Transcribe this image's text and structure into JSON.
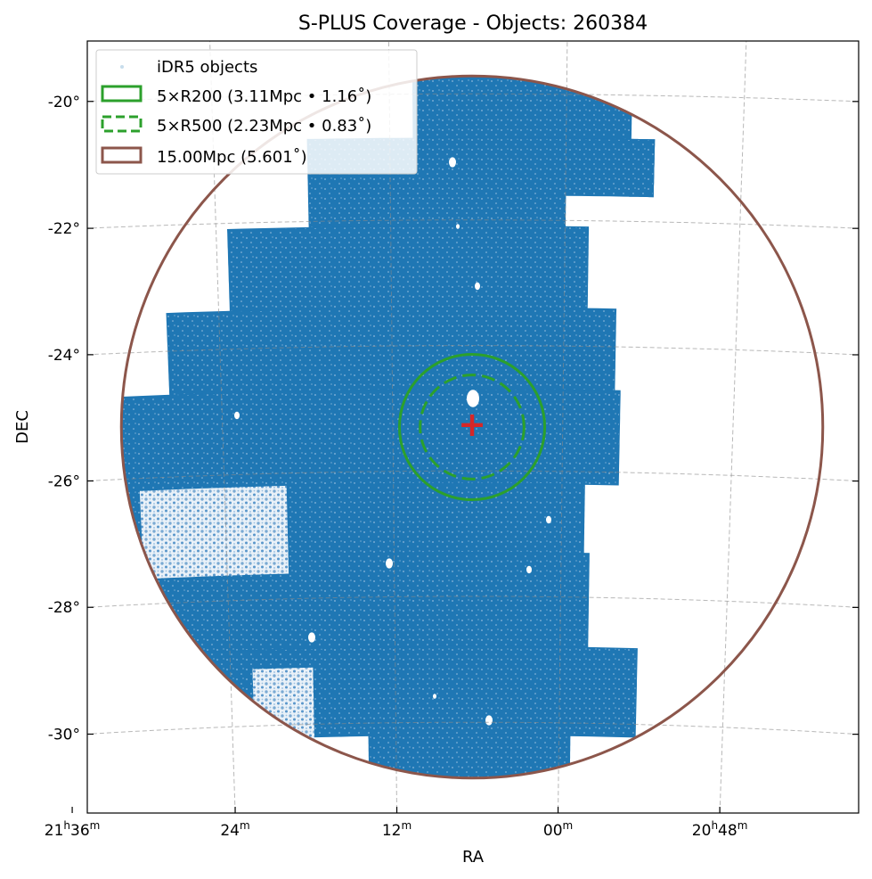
{
  "chart_data": {
    "type": "scatter",
    "title": "S-PLUS Coverage - Objects: 260384",
    "xlabel": "RA",
    "ylabel": "DEC",
    "projection": "sky (tangent plane), RA increasing to the left",
    "center": {
      "ra_deg": 316.6,
      "dec_deg": -25.3
    },
    "xlim_ra_deg": [
      324.2,
      308.8
    ],
    "ylim_dec_deg": [
      -31.4,
      -19.2
    ],
    "x_ticks": [
      {
        "label": "21h36m",
        "ra_deg": 324.0
      },
      {
        "label": "24m",
        "ra_deg": 321.0
      },
      {
        "label": "12m",
        "ra_deg": 318.0
      },
      {
        "label": "00m",
        "ra_deg": 315.0
      },
      {
        "label": "20h48m",
        "ra_deg": 312.0
      }
    ],
    "y_ticks": [
      {
        "label": "-20°",
        "dec_deg": -20
      },
      {
        "label": "-22°",
        "dec_deg": -22
      },
      {
        "label": "-24°",
        "dec_deg": -24
      },
      {
        "label": "-26°",
        "dec_deg": -26
      },
      {
        "label": "-28°",
        "dec_deg": -28
      },
      {
        "label": "-30°",
        "dec_deg": -30
      }
    ],
    "grid": true,
    "legend_position": "top-left",
    "series": [
      {
        "name": "iDR5 objects",
        "kind": "points",
        "color": "#1f77b4",
        "count": 260384,
        "coverage_regions_deg": [
          {
            "ra": [
              317.6,
              313.9
            ],
            "dec": [
              -20.7,
              -19.7
            ]
          },
          {
            "ra": [
              313.9,
              313.5
            ],
            "dec": [
              -20.7,
              -21.6
            ]
          },
          {
            "ra": [
              319.4,
              313.5
            ],
            "dec": [
              -21.6,
              -20.7
            ]
          },
          {
            "ra": [
              319.4,
              315.0
            ],
            "dec": [
              -22.1,
              -21.6
            ]
          },
          {
            "ra": [
              320.8,
              314.6
            ],
            "dec": [
              -23.4,
              -22.1
            ]
          },
          {
            "ra": [
              321.9,
              314.1
            ],
            "dec": [
              -24.7,
              -23.4
            ]
          },
          {
            "ra": [
              324.1,
              314.0
            ],
            "dec": [
              -26.2,
              -24.7
            ]
          },
          {
            "ra": [
              324.1,
              314.6
            ],
            "dec": [
              -27.3,
              -26.2
            ]
          },
          {
            "ra": [
              324.1,
              314.5
            ],
            "dec": [
              -28.8,
              -27.3
            ]
          },
          {
            "ra": [
              324.1,
              313.6
            ],
            "dec": [
              -30.2,
              -28.8
            ]
          },
          {
            "ra": [
              318.5,
              314.8
            ],
            "dec": [
              -30.9,
              -30.2
            ]
          }
        ],
        "sparse_regions_deg": [
          {
            "ra": [
              322.5,
              319.9
            ],
            "dec": [
              -27.6,
              -26.2
            ]
          },
          {
            "ra": [
              320.6,
              319.5
            ],
            "dec": [
              -30.5,
              -29.1
            ]
          }
        ]
      },
      {
        "name": "5×R200 (3.11Mpc • 1.16˚)",
        "kind": "circle",
        "color": "#2ca02c",
        "linestyle": "solid",
        "radius_deg": 1.16
      },
      {
        "name": "5×R500 (2.23Mpc • 0.83˚)",
        "kind": "circle",
        "color": "#2ca02c",
        "linestyle": "dashed",
        "radius_deg": 0.83
      },
      {
        "name": "15.00Mpc (5.601˚)",
        "kind": "circle",
        "color": "#8c564b",
        "linestyle": "solid",
        "radius_deg": 5.601
      }
    ],
    "center_marker": {
      "symbol": "+",
      "color": "#d62728"
    }
  }
}
